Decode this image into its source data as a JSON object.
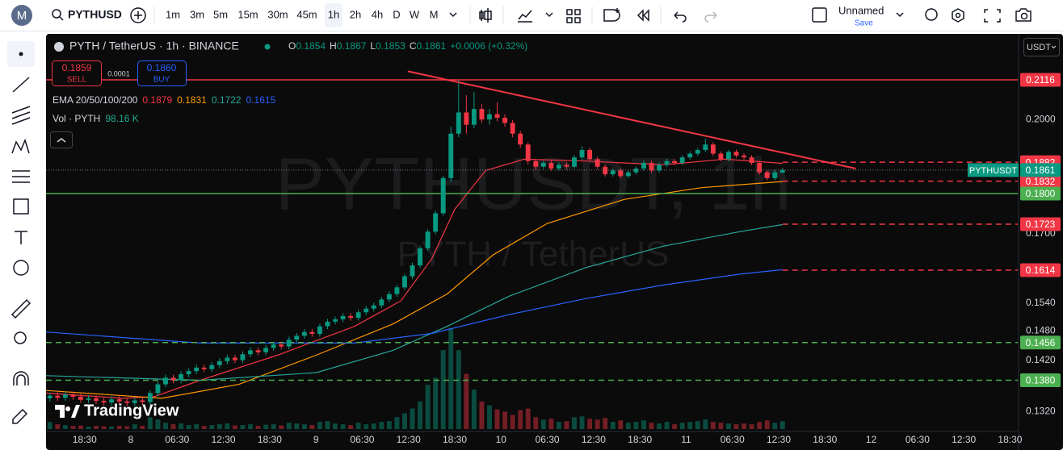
{
  "toolbar": {
    "avatar": "M",
    "symbol": "PYTHUSD",
    "intervals": [
      "1m",
      "3m",
      "5m",
      "15m",
      "30m",
      "45m",
      "1h",
      "2h",
      "4h",
      "D",
      "W",
      "M"
    ],
    "active_interval": "1h",
    "layout_name": "Unnamed",
    "save": "Save"
  },
  "legend": {
    "title": "PYTH / TetherUS · 1h · BINANCE",
    "ohlc_letters": [
      "O",
      "H",
      "L",
      "C"
    ],
    "change": "+0.0006 (+0.32%)",
    "sell_price": "0.1859",
    "sell": "SELL",
    "spread": "0.0001",
    "buy_price": "0.1860",
    "buy": "BUY",
    "ema_title": "EMA 20/50/100/200",
    "vol_title": "Vol · PYTH",
    "vol_value": "98.16 K"
  },
  "watermark": [
    "PYTHUSDT, 1h",
    "PYTH / TetherUS"
  ],
  "currency": "USDT",
  "branding": "TradingView",
  "chart_data": {
    "type": "candlestick",
    "log_scale": true,
    "grid": false,
    "up_color": "#089981",
    "down_color": "#f23645",
    "xlim": [
      0,
      126
    ],
    "ylim": [
      0.1283,
      0.2259
    ],
    "xticks": [
      {
        "value": 5,
        "label": "18:30"
      },
      {
        "value": 11,
        "label": "8"
      },
      {
        "value": 17,
        "label": "06:30"
      },
      {
        "value": 23,
        "label": "12:30"
      },
      {
        "value": 29,
        "label": "18:30"
      },
      {
        "value": 35,
        "label": "9"
      },
      {
        "value": 41,
        "label": "06:30"
      },
      {
        "value": 47,
        "label": "12:30"
      },
      {
        "value": 53,
        "label": "18:30"
      },
      {
        "value": 59,
        "label": "10"
      },
      {
        "value": 65,
        "label": "06:30"
      },
      {
        "value": 71,
        "label": "12:30"
      },
      {
        "value": 77,
        "label": "18:30"
      },
      {
        "value": 83,
        "label": "11"
      },
      {
        "value": 89,
        "label": "06:30"
      },
      {
        "value": 95,
        "label": "12:30"
      },
      {
        "value": 101,
        "label": "18:30"
      },
      {
        "value": 107,
        "label": "12"
      },
      {
        "value": 113,
        "label": "06:30"
      },
      {
        "value": 119,
        "label": "12:30"
      },
      {
        "value": 125,
        "label": "18:30"
      }
    ],
    "yticks": [
      {
        "value": 0.132,
        "label": "0.1320"
      },
      {
        "value": 0.142,
        "label": "0.1420"
      },
      {
        "value": 0.148,
        "label": "0.1480"
      },
      {
        "value": 0.154,
        "label": "0.1540"
      },
      {
        "value": 0.17,
        "label": "0.1700"
      },
      {
        "value": 0.2,
        "label": "0.2000"
      }
    ],
    "candles": [
      [
        0.1345,
        0.1356,
        0.1339,
        0.135
      ],
      [
        0.135,
        0.1356,
        0.134,
        0.1346
      ],
      [
        0.1346,
        0.1358,
        0.134,
        0.1352
      ],
      [
        0.1352,
        0.1358,
        0.1342,
        0.1348
      ],
      [
        0.1348,
        0.1354,
        0.1336,
        0.1342
      ],
      [
        0.1342,
        0.1351,
        0.1336,
        0.1345
      ],
      [
        0.1345,
        0.1351,
        0.1334,
        0.134
      ],
      [
        0.134,
        0.1346,
        0.1331,
        0.1337
      ],
      [
        0.1337,
        0.1349,
        0.1331,
        0.1343
      ],
      [
        0.1343,
        0.1349,
        0.1333,
        0.1339
      ],
      [
        0.1339,
        0.1345,
        0.133,
        0.1336
      ],
      [
        0.1336,
        0.1347,
        0.133,
        0.1341
      ],
      [
        0.1341,
        0.1347,
        0.1332,
        0.1338
      ],
      [
        0.1338,
        0.1361,
        0.1332,
        0.1355
      ],
      [
        0.1355,
        0.1378,
        0.1349,
        0.1372
      ],
      [
        0.1372,
        0.1391,
        0.1366,
        0.1385
      ],
      [
        0.1385,
        0.1391,
        0.1374,
        0.138
      ],
      [
        0.138,
        0.1398,
        0.1374,
        0.1392
      ],
      [
        0.1392,
        0.1404,
        0.1386,
        0.1398
      ],
      [
        0.1398,
        0.1411,
        0.1392,
        0.1405
      ],
      [
        0.1405,
        0.1411,
        0.1396,
        0.1402
      ],
      [
        0.1402,
        0.1416,
        0.1396,
        0.141
      ],
      [
        0.141,
        0.1424,
        0.1404,
        0.1418
      ],
      [
        0.1418,
        0.1431,
        0.1412,
        0.1425
      ],
      [
        0.1425,
        0.1431,
        0.1414,
        0.142
      ],
      [
        0.142,
        0.1438,
        0.1414,
        0.1432
      ],
      [
        0.1432,
        0.1446,
        0.1426,
        0.144
      ],
      [
        0.144,
        0.1446,
        0.143,
        0.1436
      ],
      [
        0.1436,
        0.1451,
        0.143,
        0.1445
      ],
      [
        0.1445,
        0.1458,
        0.1439,
        0.1452
      ],
      [
        0.1452,
        0.1458,
        0.1442,
        0.1448
      ],
      [
        0.1448,
        0.1468,
        0.1442,
        0.1462
      ],
      [
        0.1462,
        0.1476,
        0.1456,
        0.147
      ],
      [
        0.147,
        0.1484,
        0.1464,
        0.1478
      ],
      [
        0.1478,
        0.1484,
        0.1468,
        0.1474
      ],
      [
        0.1474,
        0.1496,
        0.1468,
        0.149
      ],
      [
        0.149,
        0.1506,
        0.1484,
        0.15
      ],
      [
        0.15,
        0.1511,
        0.1494,
        0.1505
      ],
      [
        0.1505,
        0.1518,
        0.1499,
        0.1512
      ],
      [
        0.1512,
        0.1518,
        0.1502,
        0.1508
      ],
      [
        0.1508,
        0.1526,
        0.1502,
        0.152
      ],
      [
        0.152,
        0.1534,
        0.1514,
        0.1528
      ],
      [
        0.1528,
        0.1541,
        0.1522,
        0.1535
      ],
      [
        0.1535,
        0.1554,
        0.1529,
        0.1548
      ],
      [
        0.1548,
        0.1566,
        0.1542,
        0.156
      ],
      [
        0.156,
        0.1581,
        0.1554,
        0.1575
      ],
      [
        0.1575,
        0.1606,
        0.1569,
        0.16
      ],
      [
        0.16,
        0.1631,
        0.1594,
        0.1625
      ],
      [
        0.1625,
        0.1671,
        0.1619,
        0.1665
      ],
      [
        0.1665,
        0.1711,
        0.1659,
        0.1705
      ],
      [
        0.1705,
        0.1756,
        0.1699,
        0.175
      ],
      [
        0.175,
        0.1846,
        0.1744,
        0.184
      ],
      [
        0.184,
        0.198,
        0.183,
        0.196
      ],
      [
        0.196,
        0.2116,
        0.195,
        0.202
      ],
      [
        0.202,
        0.207,
        0.196,
        0.1985
      ],
      [
        0.1985,
        0.208,
        0.1975,
        0.203
      ],
      [
        0.203,
        0.2045,
        0.199,
        0.2
      ],
      [
        0.2,
        0.203,
        0.1985,
        0.2015
      ],
      [
        0.2015,
        0.205,
        0.1995,
        0.2005
      ],
      [
        0.2005,
        0.2015,
        0.198,
        0.199
      ],
      [
        0.199,
        0.1998,
        0.195,
        0.196
      ],
      [
        0.196,
        0.1968,
        0.192,
        0.193
      ],
      [
        0.193,
        0.1936,
        0.1876,
        0.1885
      ],
      [
        0.1885,
        0.1891,
        0.1862,
        0.187
      ],
      [
        0.187,
        0.1886,
        0.1864,
        0.188
      ],
      [
        0.188,
        0.1886,
        0.1859,
        0.1865
      ],
      [
        0.1865,
        0.1881,
        0.1859,
        0.1875
      ],
      [
        0.1875,
        0.1881,
        0.1864,
        0.187
      ],
      [
        0.187,
        0.1901,
        0.1864,
        0.1895
      ],
      [
        0.1895,
        0.1925,
        0.1889,
        0.1915
      ],
      [
        0.1915,
        0.1921,
        0.1884,
        0.189
      ],
      [
        0.189,
        0.1896,
        0.1864,
        0.187
      ],
      [
        0.187,
        0.1876,
        0.1844,
        0.185
      ],
      [
        0.185,
        0.1866,
        0.1844,
        0.186
      ],
      [
        0.186,
        0.1866,
        0.1839,
        0.1845
      ],
      [
        0.1845,
        0.1861,
        0.1839,
        0.1855
      ],
      [
        0.1855,
        0.1871,
        0.1849,
        0.1865
      ],
      [
        0.1865,
        0.1886,
        0.1859,
        0.188
      ],
      [
        0.188,
        0.1886,
        0.1854,
        0.186
      ],
      [
        0.186,
        0.1881,
        0.1854,
        0.1875
      ],
      [
        0.1875,
        0.1891,
        0.1869,
        0.1885
      ],
      [
        0.1885,
        0.1891,
        0.1874,
        0.188
      ],
      [
        0.188,
        0.1901,
        0.1874,
        0.1895
      ],
      [
        0.1895,
        0.1911,
        0.1889,
        0.1905
      ],
      [
        0.1905,
        0.1921,
        0.1899,
        0.1915
      ],
      [
        0.1915,
        0.1945,
        0.1909,
        0.193
      ],
      [
        0.193,
        0.1936,
        0.1899,
        0.1905
      ],
      [
        0.1905,
        0.1911,
        0.1884,
        0.189
      ],
      [
        0.189,
        0.1916,
        0.1884,
        0.191
      ],
      [
        0.191,
        0.1916,
        0.1894,
        0.19
      ],
      [
        0.19,
        0.1906,
        0.1889,
        0.1895
      ],
      [
        0.1895,
        0.1901,
        0.1874,
        0.188
      ],
      [
        0.188,
        0.1886,
        0.1849,
        0.1855
      ],
      [
        0.1855,
        0.1861,
        0.1834,
        0.184
      ],
      [
        0.184,
        0.1861,
        0.1834,
        0.1855
      ],
      [
        0.1854,
        0.1867,
        0.1853,
        0.1861
      ]
    ],
    "volume": [
      90,
      60,
      50,
      40,
      45,
      30,
      40,
      35,
      30,
      40,
      35,
      60,
      40,
      150,
      120,
      80,
      60,
      70,
      50,
      60,
      40,
      50,
      60,
      70,
      45,
      50,
      60,
      40,
      55,
      60,
      45,
      80,
      70,
      60,
      50,
      90,
      100,
      70,
      60,
      50,
      80,
      60,
      70,
      90,
      100,
      150,
      200,
      260,
      350,
      560,
      650,
      1000,
      1280,
      1000,
      700,
      500,
      350,
      300,
      250,
      220,
      180,
      240,
      260,
      150,
      120,
      130,
      90,
      100,
      150,
      160,
      130,
      120,
      140,
      90,
      110,
      80,
      90,
      110,
      80,
      70,
      90,
      60,
      80,
      90,
      100,
      120,
      90,
      80,
      70,
      60,
      70,
      60,
      90,
      110,
      80,
      98.16
    ],
    "volume_ylim": [
      0,
      1400
    ],
    "series": [
      {
        "color": "#f23645",
        "x": [
          0,
          10,
          14,
          20,
          30,
          40,
          46,
          50,
          53,
          57,
          62,
          70,
          80,
          88,
          95.5
        ],
        "values": [
          0.1355,
          0.1345,
          0.1348,
          0.138,
          0.143,
          0.149,
          0.1545,
          0.164,
          0.176,
          0.186,
          0.189,
          0.1885,
          0.1875,
          0.189,
          0.1879
        ]
      },
      {
        "color": "#ff9800",
        "x": [
          0,
          15,
          25,
          35,
          45,
          52,
          58,
          65,
          75,
          85,
          95.5
        ],
        "values": [
          0.136,
          0.1345,
          0.1372,
          0.143,
          0.1495,
          0.156,
          0.165,
          0.1725,
          0.1785,
          0.1815,
          0.1831
        ]
      },
      {
        "color": "#26a69a",
        "x": [
          0,
          20,
          35,
          45,
          52,
          60,
          70,
          80,
          90,
          95.5
        ],
        "values": [
          0.1389,
          0.138,
          0.1395,
          0.144,
          0.149,
          0.1555,
          0.162,
          0.167,
          0.1705,
          0.1722
        ]
      },
      {
        "color": "#2962ff",
        "x": [
          0,
          20,
          40,
          50,
          60,
          70,
          80,
          90,
          95.5
        ],
        "values": [
          0.1478,
          0.1455,
          0.1455,
          0.1475,
          0.1515,
          0.155,
          0.158,
          0.1605,
          0.1615
        ]
      }
    ],
    "levels": [
      {
        "value": 0.2116,
        "color": "#f23645",
        "style": "solid",
        "span": "full"
      },
      {
        "value": 0.1882,
        "color": "#f23645",
        "style": "dashed",
        "span": "right"
      },
      {
        "value": 0.1832,
        "color": "#f23645",
        "style": "dashed",
        "span": "right"
      },
      {
        "value": 0.18,
        "label": "0.1800",
        "color": "#4caf50",
        "style": "solid",
        "span": "full"
      },
      {
        "value": 0.1723,
        "color": "#f23645",
        "style": "dashed",
        "span": "right"
      },
      {
        "value": 0.1614,
        "color": "#f23645",
        "style": "dashed",
        "span": "right"
      },
      {
        "value": 0.1456,
        "color": "#4caf50",
        "style": "dashed",
        "span": "full"
      },
      {
        "value": 0.138,
        "label": "0.1380",
        "color": "#4caf50",
        "style": "dashed",
        "span": "full"
      }
    ],
    "trendline": {
      "color": "#f23645",
      "x": [
        46.9,
        105
      ],
      "values": [
        0.2142,
        0.1865
      ]
    },
    "last_price_label": "PYTHUSDT"
  }
}
